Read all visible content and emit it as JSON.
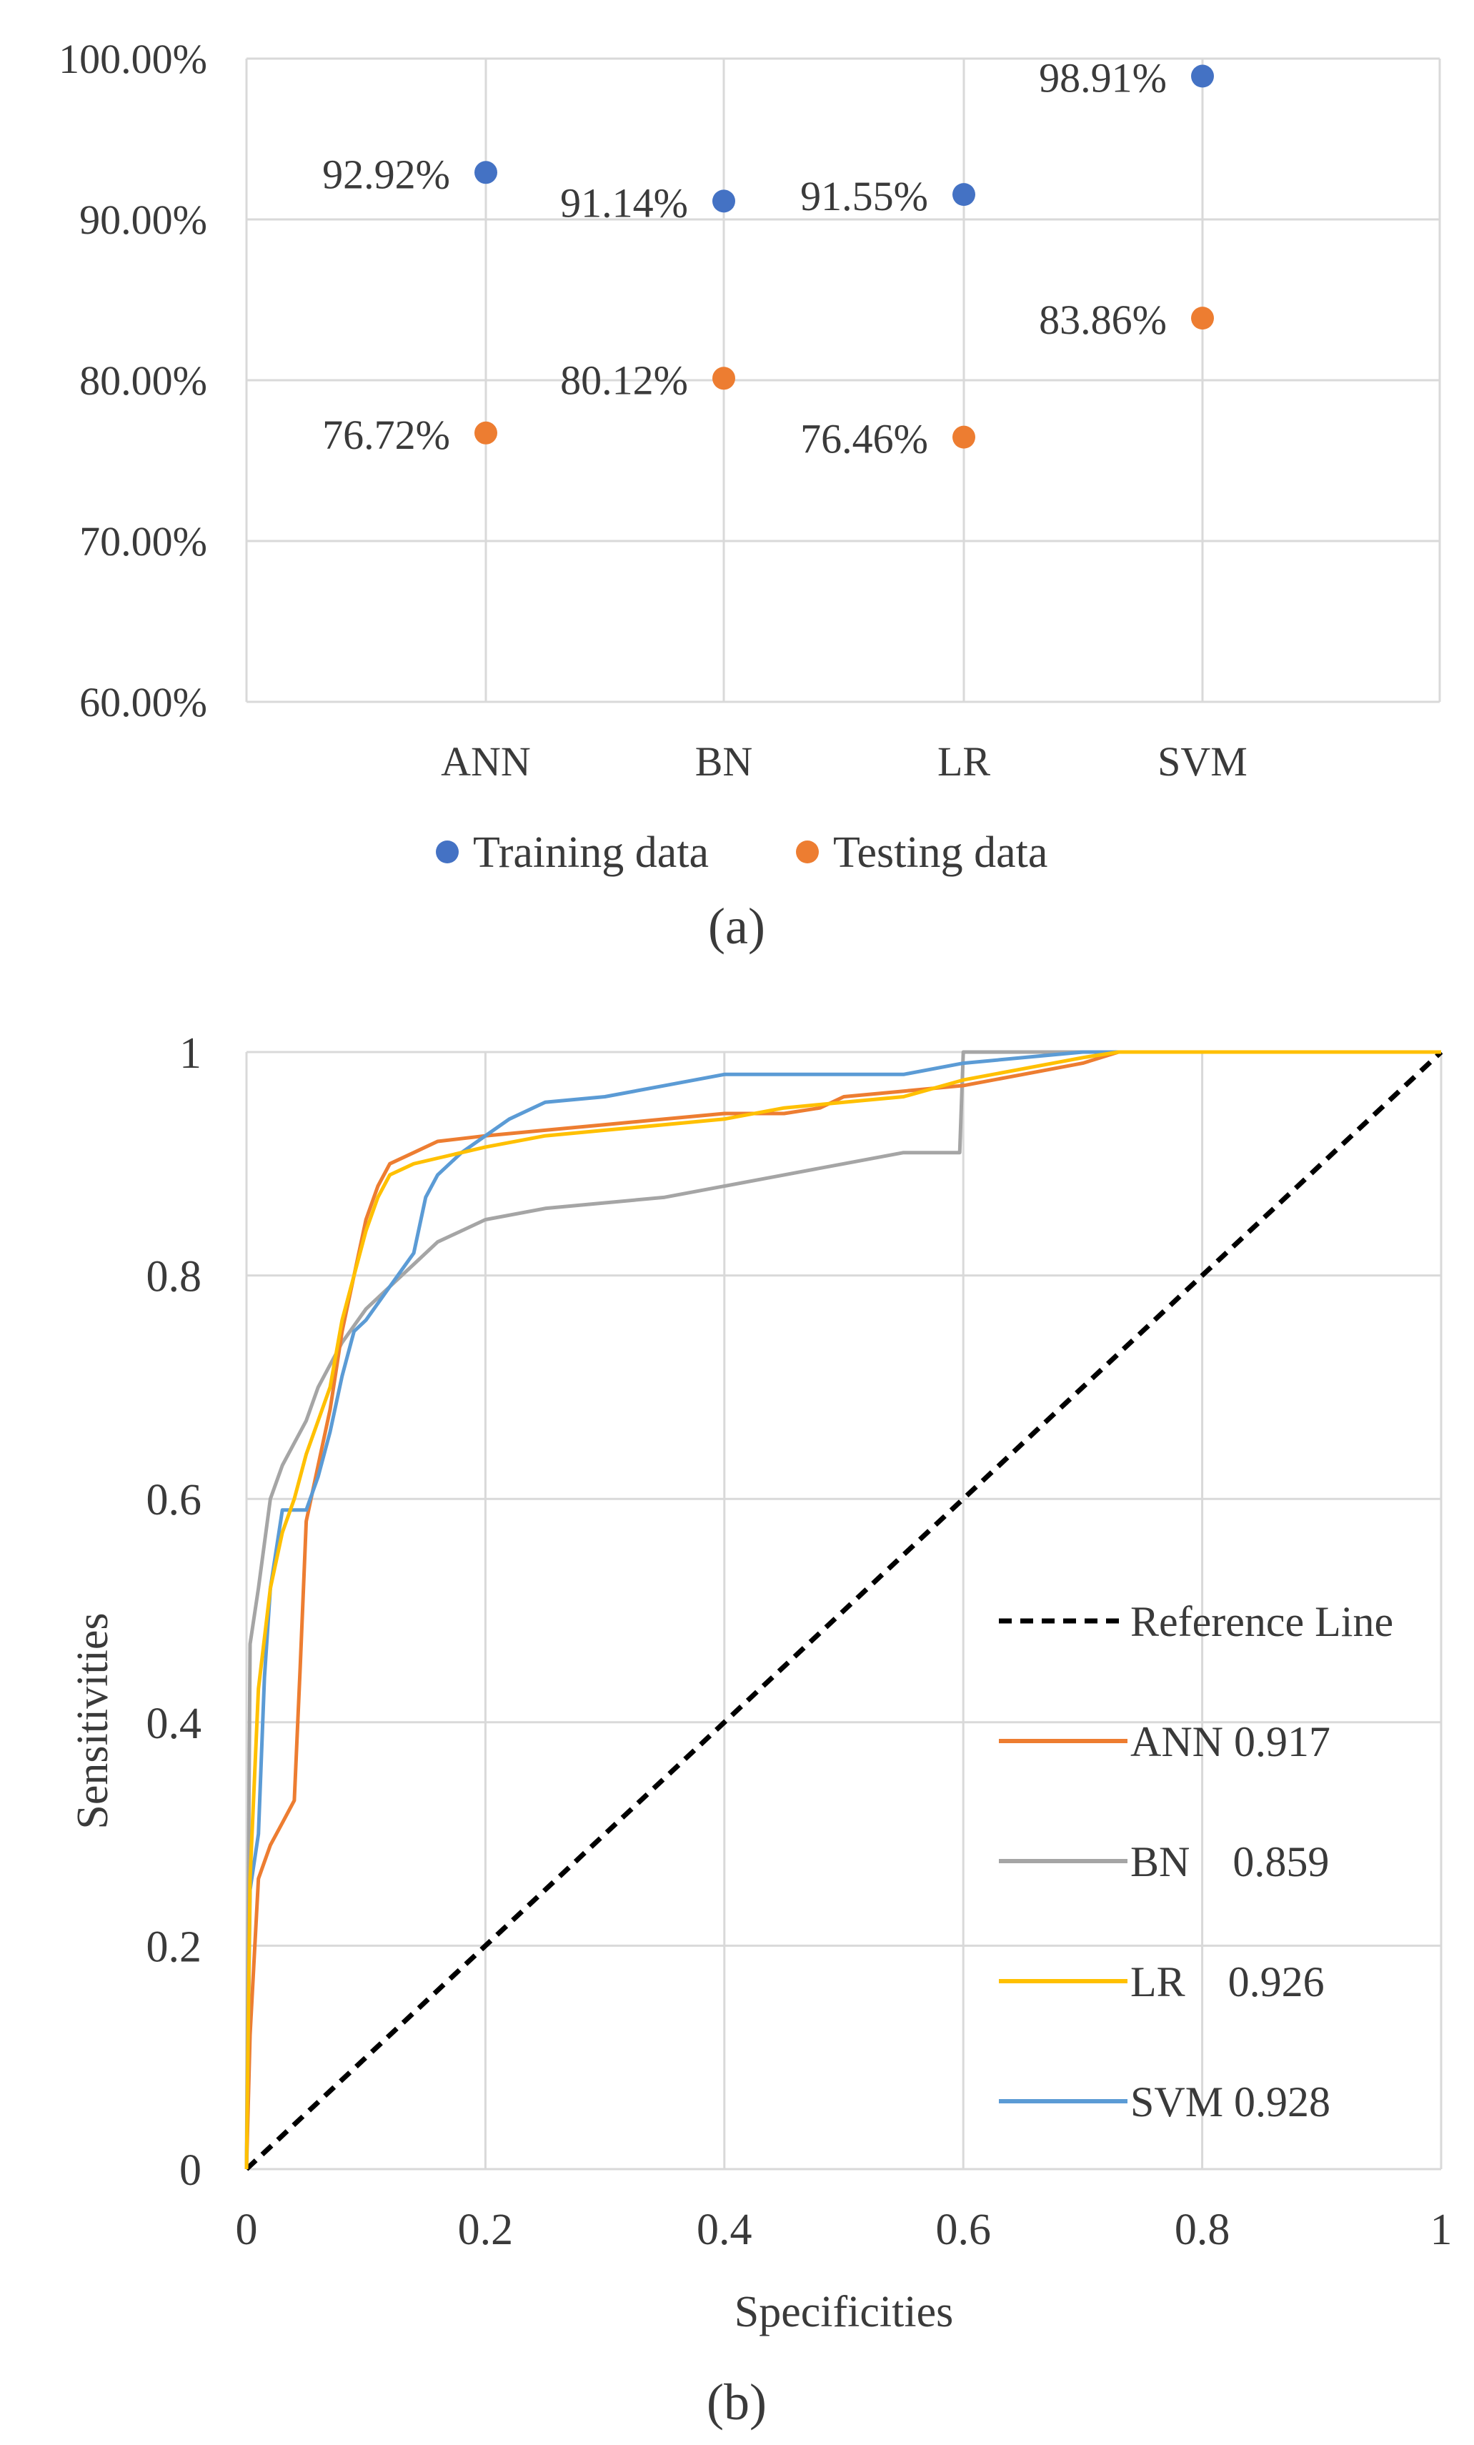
{
  "colors": {
    "training": "#4472c4",
    "testing": "#ed7d31",
    "ann": "#ed7d31",
    "bn": "#a5a5a5",
    "lr": "#ffc000",
    "svm": "#5b9bd5",
    "reference": "#000000",
    "grid": "#d9d9d9"
  },
  "chart_data": [
    {
      "type": "scatter",
      "panel_label": "(a)",
      "categories": [
        "ANN",
        "BN",
        "LR",
        "SVM"
      ],
      "ylim": [
        0.6,
        1.0
      ],
      "yticks": [
        0.6,
        0.7,
        0.8,
        0.9,
        1.0
      ],
      "ytick_labels": [
        "60.00%",
        "70.00%",
        "80.00%",
        "90.00%",
        "100.00%"
      ],
      "grid": true,
      "legend_position": "bottom",
      "series": [
        {
          "name": "Training data",
          "values": [
            0.9292,
            0.9114,
            0.9155,
            0.9891
          ],
          "labels": [
            "92.92%",
            "91.14%",
            "91.55%",
            "98.91%"
          ]
        },
        {
          "name": "Testing data",
          "values": [
            0.7672,
            0.8012,
            0.7646,
            0.8386
          ],
          "labels": [
            "76.72%",
            "80.12%",
            "76.46%",
            "83.86%"
          ]
        }
      ]
    },
    {
      "type": "line",
      "panel_label": "(b)",
      "xlabel": "Specificities",
      "ylabel": "Sensitivities",
      "xlim": [
        0,
        1
      ],
      "ylim": [
        0,
        1
      ],
      "xticks": [
        0,
        0.2,
        0.4,
        0.6,
        0.8,
        1
      ],
      "xtick_labels": [
        "0",
        "0.2",
        "0.4",
        "0.6",
        "0.8",
        "1"
      ],
      "yticks": [
        0,
        0.2,
        0.4,
        0.6,
        0.8,
        1
      ],
      "ytick_labels": [
        "0",
        "0.2",
        "0.4",
        "0.6",
        "0.8",
        "1"
      ],
      "grid": true,
      "legend_position": "right",
      "series": [
        {
          "name": "Reference Line",
          "legend_label": "Reference Line",
          "style": "dashed",
          "x": [
            0,
            1
          ],
          "y": [
            0,
            1
          ]
        },
        {
          "name": "ANN",
          "legend_label": "ANN 0.917",
          "auc": 0.917,
          "x": [
            0,
            0.003,
            0.01,
            0.02,
            0.03,
            0.04,
            0.045,
            0.05,
            0.06,
            0.07,
            0.08,
            0.09,
            0.1,
            0.11,
            0.12,
            0.14,
            0.16,
            0.2,
            0.25,
            0.3,
            0.35,
            0.4,
            0.45,
            0.48,
            0.5,
            0.55,
            0.6,
            0.65,
            0.7,
            0.73,
            0.8,
            0.9,
            1
          ],
          "y": [
            0,
            0.12,
            0.26,
            0.29,
            0.31,
            0.33,
            0.45,
            0.58,
            0.63,
            0.68,
            0.75,
            0.8,
            0.85,
            0.88,
            0.9,
            0.91,
            0.92,
            0.925,
            0.93,
            0.935,
            0.94,
            0.945,
            0.945,
            0.95,
            0.96,
            0.965,
            0.97,
            0.98,
            0.99,
            1,
            1,
            1,
            1
          ]
        },
        {
          "name": "BN",
          "legend_label": "BN    0.859",
          "auc": 0.859,
          "x": [
            0,
            0.003,
            0.01,
            0.02,
            0.03,
            0.04,
            0.05,
            0.06,
            0.07,
            0.08,
            0.1,
            0.12,
            0.14,
            0.16,
            0.18,
            0.2,
            0.25,
            0.3,
            0.35,
            0.4,
            0.45,
            0.5,
            0.55,
            0.597,
            0.6,
            0.65,
            0.7,
            0.73,
            0.8,
            0.9,
            1
          ],
          "y": [
            0,
            0.47,
            0.52,
            0.6,
            0.63,
            0.65,
            0.67,
            0.7,
            0.72,
            0.74,
            0.77,
            0.79,
            0.81,
            0.83,
            0.84,
            0.85,
            0.86,
            0.865,
            0.87,
            0.88,
            0.89,
            0.9,
            0.91,
            0.91,
            1,
            1,
            1,
            1,
            1,
            1,
            1
          ]
        },
        {
          "name": "LR",
          "legend_label": "LR    0.926",
          "auc": 0.926,
          "x": [
            0,
            0.003,
            0.01,
            0.02,
            0.03,
            0.04,
            0.05,
            0.06,
            0.07,
            0.08,
            0.09,
            0.1,
            0.11,
            0.12,
            0.14,
            0.16,
            0.2,
            0.25,
            0.3,
            0.35,
            0.4,
            0.45,
            0.5,
            0.55,
            0.6,
            0.65,
            0.7,
            0.73,
            0.8,
            0.9,
            1
          ],
          "y": [
            0,
            0.26,
            0.43,
            0.52,
            0.57,
            0.6,
            0.64,
            0.67,
            0.7,
            0.76,
            0.8,
            0.84,
            0.87,
            0.89,
            0.9,
            0.905,
            0.915,
            0.925,
            0.93,
            0.935,
            0.94,
            0.95,
            0.955,
            0.96,
            0.975,
            0.985,
            0.995,
            1,
            1,
            1,
            1
          ]
        },
        {
          "name": "SVM",
          "legend_label": "SVM 0.928",
          "auc": 0.928,
          "x": [
            0,
            0.003,
            0.01,
            0.015,
            0.02,
            0.03,
            0.04,
            0.05,
            0.06,
            0.07,
            0.08,
            0.09,
            0.1,
            0.12,
            0.14,
            0.15,
            0.16,
            0.18,
            0.2,
            0.22,
            0.25,
            0.3,
            0.35,
            0.4,
            0.45,
            0.5,
            0.55,
            0.6,
            0.65,
            0.7,
            0.73,
            0.8,
            0.9,
            1
          ],
          "y": [
            0,
            0.25,
            0.3,
            0.44,
            0.52,
            0.59,
            0.59,
            0.59,
            0.62,
            0.66,
            0.71,
            0.75,
            0.76,
            0.79,
            0.82,
            0.87,
            0.89,
            0.91,
            0.925,
            0.94,
            0.955,
            0.96,
            0.97,
            0.98,
            0.98,
            0.98,
            0.98,
            0.99,
            0.995,
            1,
            1,
            1,
            1,
            1
          ]
        }
      ]
    }
  ]
}
